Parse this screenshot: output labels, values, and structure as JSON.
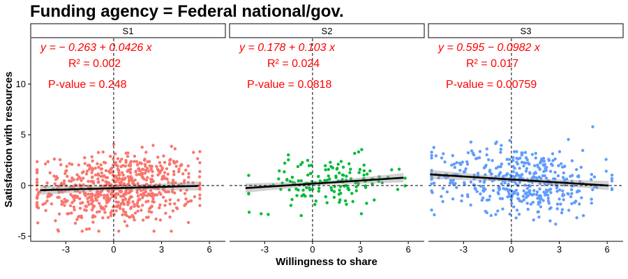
{
  "chart_data": {
    "type": "scatter",
    "title": "Funding agency = Federal national/gov.",
    "xlabel": "Willingness to share",
    "ylabel": "Satisfaction with resources",
    "xlim": [
      -5.2,
      7.0
    ],
    "ylim": [
      -5.5,
      14.5
    ],
    "x_ticks": [
      -3,
      0,
      3,
      6
    ],
    "x_tick_labels": [
      "-3",
      "0",
      "3",
      "6"
    ],
    "y_ticks": [
      -5,
      0,
      5,
      10
    ],
    "y_tick_labels": [
      "-5",
      "0",
      "5",
      "10"
    ],
    "grid": false,
    "legend": "none",
    "reference_lines": {
      "x": 0,
      "y": 0,
      "style": "dashed"
    },
    "panels": [
      {
        "strip": "S1",
        "color": "#F8766D",
        "n_points": 700,
        "x_range": [
          -4.8,
          5.4
        ],
        "y_range": [
          -4.5,
          7.8
        ],
        "regression": {
          "intercept": -0.263,
          "slope": 0.0426,
          "x_range": [
            -4.6,
            5.3
          ],
          "equation": "y = − 0.263 + 0.0426 x",
          "r2_label": "R² = 0.002",
          "p_label": "P-value = 0.248"
        }
      },
      {
        "strip": "S2",
        "color": "#00BA38",
        "n_points": 150,
        "x_range": [
          -4.0,
          5.8
        ],
        "y_range": [
          -4.6,
          4.4
        ],
        "regression": {
          "intercept": 0.178,
          "slope": 0.103,
          "x_range": [
            -4.2,
            5.7
          ],
          "equation": "y = 0.178 + 0.103 x",
          "r2_label": "R² = 0.024",
          "p_label": "P-value = 0.0818"
        }
      },
      {
        "strip": "S3",
        "color": "#619CFF",
        "n_points": 450,
        "x_range": [
          -5.0,
          6.3
        ],
        "y_range": [
          -3.8,
          8.2
        ],
        "regression": {
          "intercept": 0.595,
          "slope": -0.0982,
          "x_range": [
            -5.1,
            6.1
          ],
          "equation": "y = 0.595 − 0.0982 x",
          "r2_label": "R² = 0.017",
          "p_label": "P-value = 0.00759"
        }
      }
    ]
  }
}
